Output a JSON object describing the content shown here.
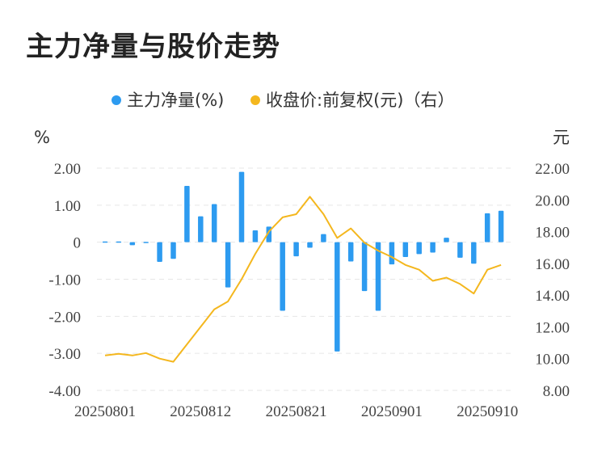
{
  "chart_data": {
    "type": "bar+line",
    "title": "主力净量与股价走势",
    "legend": [
      {
        "name": "主力净量(%)",
        "color": "#2d9bf0"
      },
      {
        "name": "收盘价:前复权(元)（右）",
        "color": "#f4b71e"
      }
    ],
    "left_axis": {
      "unit": "%",
      "ylim": [
        -4,
        2
      ],
      "ticks": [
        "2.00",
        "1.00",
        "0",
        "-1.00",
        "-2.00",
        "-3.00",
        "-4.00"
      ]
    },
    "right_axis": {
      "unit": "元",
      "ylim": [
        8,
        22
      ],
      "ticks": [
        "22.00",
        "20.00",
        "18.00",
        "16.00",
        "14.00",
        "12.00",
        "10.00",
        "8.00"
      ]
    },
    "x_tick_labels": [
      "20250801",
      "20250812",
      "20250821",
      "20250901",
      "20250910"
    ],
    "x_tick_indices": [
      0,
      7,
      14,
      21,
      28
    ],
    "series": [
      {
        "name": "主力净量(%)",
        "kind": "bar",
        "values": [
          0.02,
          0.02,
          -0.08,
          0.01,
          -0.53,
          -0.45,
          1.52,
          0.7,
          1.03,
          -1.22,
          1.9,
          0.32,
          0.42,
          -1.85,
          -0.38,
          -0.15,
          0.22,
          -2.95,
          -0.52,
          -1.32,
          -1.85,
          -0.6,
          -0.4,
          -0.32,
          -0.28,
          0.12,
          -0.42,
          -0.58,
          0.78,
          0.85
        ]
      },
      {
        "name": "收盘价:前复权(元)（右）",
        "kind": "line",
        "values": [
          10.2,
          10.3,
          10.2,
          10.35,
          10.0,
          9.8,
          10.9,
          12.0,
          13.1,
          13.6,
          15.0,
          16.6,
          18.0,
          18.9,
          19.1,
          20.2,
          19.1,
          17.6,
          18.2,
          17.3,
          16.8,
          16.4,
          15.9,
          15.6,
          14.9,
          15.1,
          14.7,
          14.1,
          15.6,
          15.9
        ]
      }
    ]
  }
}
